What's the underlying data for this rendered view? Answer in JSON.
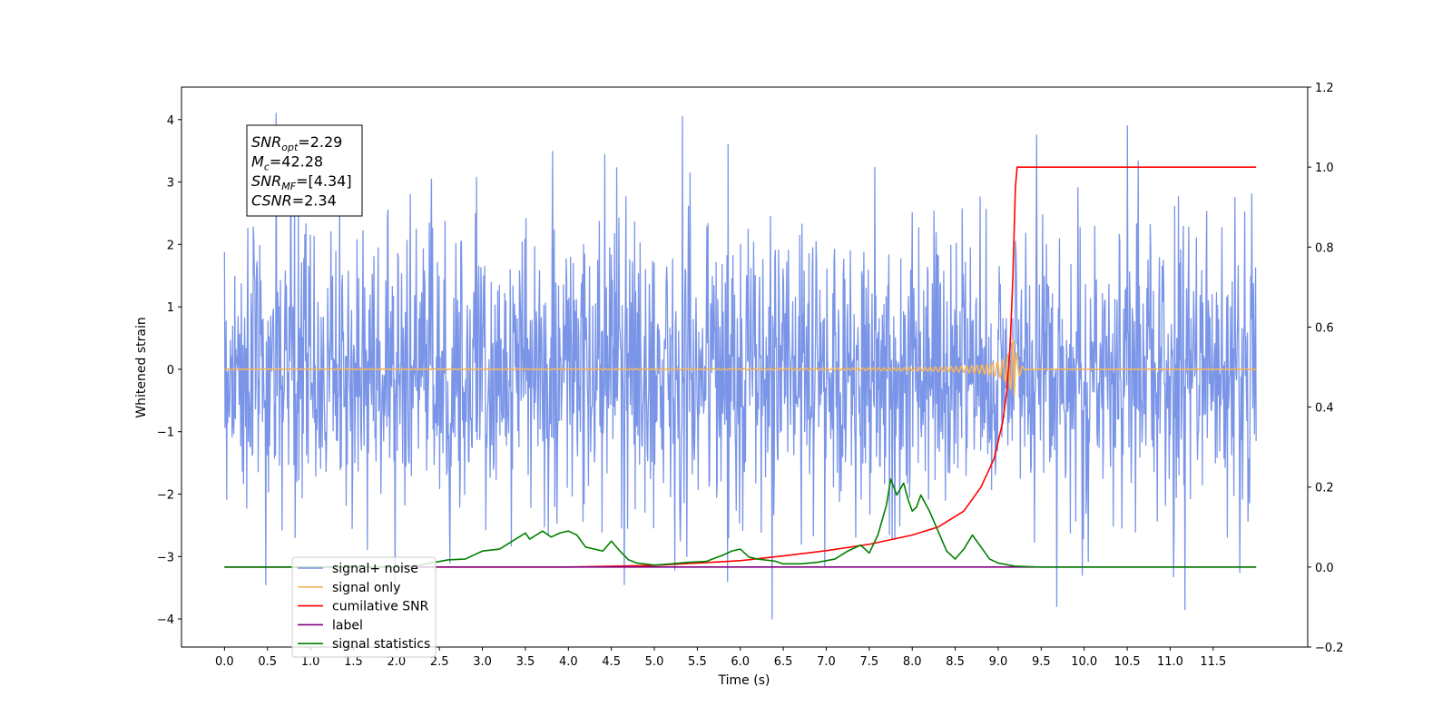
{
  "chart_data": {
    "type": "line",
    "xlabel": "Time (s)",
    "ylabel": "Whitened strain",
    "xlim": [
      -0.5,
      12.6
    ],
    "ylim": [
      -4.45,
      4.52
    ],
    "y2lim": [
      -0.2,
      1.2
    ],
    "x_ticks": [
      0.0,
      0.5,
      1.0,
      1.5,
      2.0,
      2.5,
      3.0,
      3.5,
      4.0,
      4.5,
      5.0,
      5.5,
      6.0,
      6.5,
      7.0,
      7.5,
      8.0,
      8.5,
      9.0,
      9.5,
      10.0,
      10.5,
      11.0,
      11.5
    ],
    "x_tick_labels": [
      "0.0",
      "0.5",
      "1.0",
      "1.5",
      "2.0",
      "2.5",
      "3.0",
      "3.5",
      "4.0",
      "4.5",
      "5.0",
      "5.5",
      "6.0",
      "6.5",
      "7.0",
      "7.5",
      "8.0",
      "8.5",
      "9.0",
      "9.5",
      "10.0",
      "10.5",
      "11.0",
      "11.5"
    ],
    "y_ticks": [
      4,
      3,
      2,
      1,
      0,
      -1,
      -2,
      -3,
      -4
    ],
    "y_tick_labels": [
      "4",
      "3",
      "2",
      "1",
      "0",
      "−1",
      "−2",
      "−3",
      "−4"
    ],
    "y2_ticks": [
      1.2,
      1.0,
      0.8,
      0.6,
      0.4,
      0.2,
      0.0,
      -0.2
    ],
    "y2_tick_labels": [
      "1.2",
      "1.0",
      "0.8",
      "0.6",
      "0.4",
      "0.2",
      "0.0",
      "−0.2"
    ],
    "grid": false,
    "legend_placement": "lower-left",
    "annotation": {
      "lines": [
        {
          "base": "SNR",
          "sub": "opt",
          "value": "=2.29"
        },
        {
          "base": "M",
          "sub": "c",
          "value": "=42.28"
        },
        {
          "base": "SNR",
          "sub": "MF",
          "value": "=[4.34]"
        },
        {
          "base": "CSNR",
          "sub": "",
          "value": "=2.34"
        }
      ]
    },
    "series": [
      {
        "name": "signal+ noise",
        "color": "#7a95e8",
        "axis": "left",
        "kind": "noise",
        "t_start": 0.0,
        "t_end": 12.0,
        "points": 1900,
        "sigma": 1.15,
        "spikes": [
          [
            0.6,
            4.1
          ],
          [
            5.33,
            4.05
          ],
          [
            10.5,
            3.9
          ],
          [
            6.37,
            -4.0
          ],
          [
            11.17,
            -3.85
          ],
          [
            9.68,
            -3.8
          ],
          [
            0.48,
            -3.45
          ],
          [
            4.65,
            -3.45
          ],
          [
            9.45,
            3.75
          ]
        ]
      },
      {
        "name": "signal only",
        "color": "#f5b55c",
        "axis": "left",
        "kind": "chirp",
        "t_start": 0.0,
        "t_end": 12.0,
        "t_merger": 9.18,
        "peak_amplitude": 0.6
      },
      {
        "name": "cumilative SNR",
        "color": "#ff0000",
        "axis": "right",
        "x": [
          0.0,
          4.0,
          5.0,
          6.0,
          6.5,
          7.0,
          7.5,
          8.0,
          8.3,
          8.6,
          8.8,
          8.95,
          9.05,
          9.1,
          9.14,
          9.17,
          9.2,
          9.22,
          12.0
        ],
        "values": [
          0.0,
          0.0,
          0.004,
          0.016,
          0.028,
          0.041,
          0.057,
          0.08,
          0.1,
          0.14,
          0.2,
          0.27,
          0.36,
          0.44,
          0.56,
          0.72,
          0.95,
          1.0,
          1.0
        ]
      },
      {
        "name": "label",
        "color": "#800080",
        "axis": "right",
        "x": [
          0.0,
          12.0
        ],
        "values": [
          0.0,
          0.0
        ]
      },
      {
        "name": "signal statistics",
        "color": "#008000",
        "axis": "right",
        "x": [
          0.0,
          2.0,
          2.2,
          2.4,
          2.6,
          2.8,
          3.0,
          3.2,
          3.35,
          3.5,
          3.55,
          3.7,
          3.8,
          3.9,
          4.0,
          4.1,
          4.2,
          4.4,
          4.5,
          4.6,
          4.7,
          4.8,
          5.0,
          5.2,
          5.4,
          5.6,
          5.8,
          5.9,
          6.0,
          6.1,
          6.2,
          6.4,
          6.5,
          6.7,
          6.9,
          7.1,
          7.25,
          7.4,
          7.5,
          7.6,
          7.7,
          7.75,
          7.82,
          7.9,
          7.95,
          8.0,
          8.05,
          8.1,
          8.2,
          8.3,
          8.4,
          8.5,
          8.6,
          8.7,
          8.8,
          8.9,
          9.0,
          9.2,
          9.5,
          10.0,
          12.0
        ],
        "values": [
          0.0,
          0.0,
          0.002,
          0.01,
          0.018,
          0.02,
          0.04,
          0.045,
          0.065,
          0.085,
          0.07,
          0.09,
          0.075,
          0.085,
          0.09,
          0.08,
          0.05,
          0.04,
          0.065,
          0.04,
          0.018,
          0.01,
          0.005,
          0.008,
          0.012,
          0.014,
          0.03,
          0.04,
          0.045,
          0.025,
          0.02,
          0.015,
          0.008,
          0.008,
          0.012,
          0.02,
          0.04,
          0.055,
          0.035,
          0.08,
          0.155,
          0.22,
          0.18,
          0.21,
          0.17,
          0.14,
          0.15,
          0.18,
          0.14,
          0.09,
          0.04,
          0.02,
          0.045,
          0.08,
          0.05,
          0.02,
          0.01,
          0.002,
          0.0,
          0.0,
          0.0
        ]
      }
    ]
  }
}
